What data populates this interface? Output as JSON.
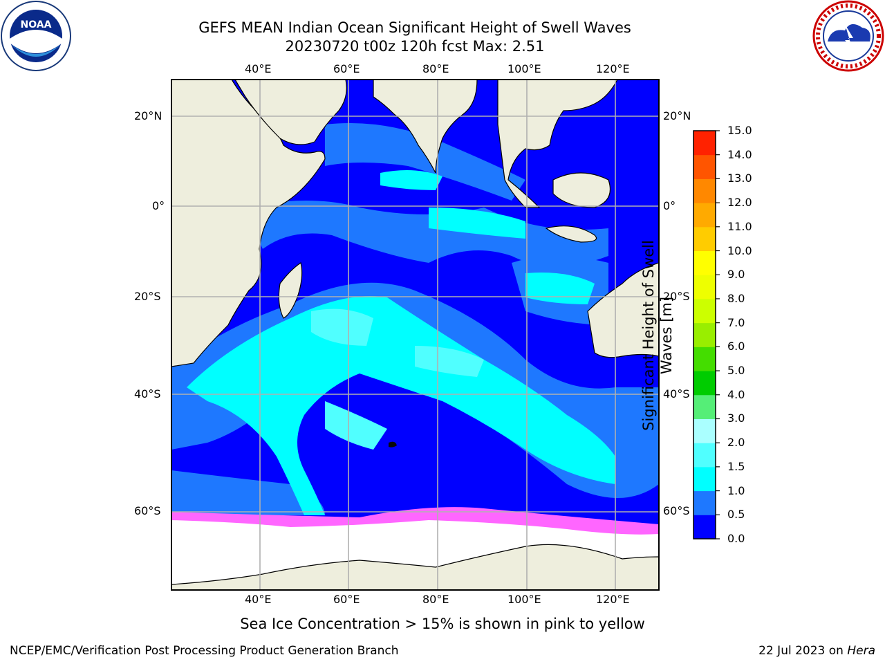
{
  "header": {
    "title_line1": "GEFS MEAN Indian Ocean Significant Height of Swell Waves",
    "title_line2": "20230720 t00z 120h fcst   Max: 2.51"
  },
  "logos": {
    "left": {
      "name": "noaa-logo",
      "text": "NOAA",
      "ring_text": "NATIONAL OCEANIC AND ATMOSPHERIC ADMINISTRATION · U.S. DEPARTMENT OF COMMERCE"
    },
    "right": {
      "name": "nws-logo",
      "ring_text": "NATIONAL WEATHER SERVICE"
    }
  },
  "map": {
    "lon_ticks": [
      "40°E",
      "60°E",
      "80°E",
      "100°E",
      "120°E"
    ],
    "lat_ticks": [
      "20°N",
      "0°",
      "20°S",
      "40°S",
      "60°S"
    ],
    "colors": {
      "land": "#eeeedd",
      "ocean_deep": "#0000ff",
      "ocean_mid": "#1e78ff",
      "ocean_light": "#00ffff",
      "ocean_pale": "#50ffff",
      "ice_pink": "#ff66ff",
      "ice_yellow": "#ffcc00",
      "grid": "#b0b0b0"
    }
  },
  "colorbar": {
    "title": "Significant Height of Swell Waves [m]",
    "tick_labels": [
      "0.0",
      "0.5",
      "1.0",
      "1.5",
      "2.0",
      "3.0",
      "4.0",
      "5.0",
      "6.0",
      "7.0",
      "8.0",
      "9.0",
      "10.0",
      "11.0",
      "12.0",
      "13.0",
      "14.0",
      "15.0"
    ],
    "colors": [
      "#0000ff",
      "#1e78ff",
      "#00ffff",
      "#50ffff",
      "#aaffff",
      "#55ee77",
      "#00cc00",
      "#44dd00",
      "#99ee00",
      "#ccff00",
      "#eeff00",
      "#ffff00",
      "#ffcc00",
      "#ffaa00",
      "#ff8800",
      "#ff5500",
      "#ff2200"
    ]
  },
  "annotation": "Sea Ice Concentration > 15% is shown in pink to yellow",
  "footer": {
    "left": "NCEP/EMC/Verification Post Processing Product Generation Branch",
    "right_prefix": "22 Jul 2023 on ",
    "right_host": "Hera"
  }
}
